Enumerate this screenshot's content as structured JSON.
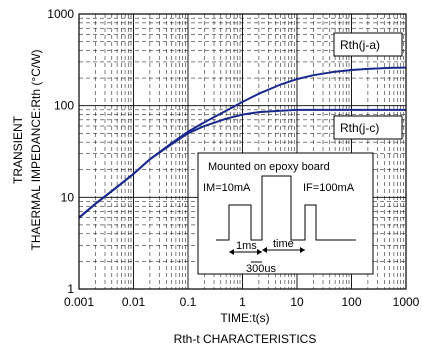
{
  "chart_data": {
    "type": "line",
    "title": "",
    "xlabel": "TIME:t(s)",
    "ylabel_line1": "TRANSIENT",
    "ylabel_line2": "THAERMAL IMPEDANCE:Rth (°C/W)",
    "caption": "Rth-t CHARACTERISTICS",
    "x_scale": "log",
    "y_scale": "log",
    "xlim": [
      0.001,
      1000
    ],
    "ylim": [
      1,
      1000
    ],
    "x_ticks": [
      "0.001",
      "0.01",
      "0.1",
      "1",
      "10",
      "100",
      "1000"
    ],
    "y_ticks": [
      "1",
      "10",
      "100",
      "1000"
    ],
    "grid": true,
    "series": [
      {
        "name": "Rth(j-a)",
        "color": "#1a2a8c",
        "x": [
          0.001,
          0.002,
          0.005,
          0.01,
          0.02,
          0.05,
          0.1,
          0.2,
          0.5,
          1,
          2,
          5,
          10,
          20,
          50,
          100,
          200,
          500,
          1000
        ],
        "y": [
          6,
          8.5,
          13,
          18,
          26,
          39,
          52,
          66,
          88,
          110,
          135,
          170,
          195,
          215,
          235,
          245,
          252,
          258,
          260
        ]
      },
      {
        "name": "Rth(j-c)",
        "color": "#1a2a8c",
        "x": [
          0.001,
          0.002,
          0.005,
          0.01,
          0.02,
          0.05,
          0.1,
          0.2,
          0.5,
          1,
          2,
          5,
          10,
          20,
          50,
          100,
          200,
          500,
          1000
        ],
        "y": [
          6,
          8.5,
          13,
          18,
          26,
          38,
          50,
          60,
          72,
          80,
          85,
          88,
          90,
          90,
          90,
          90,
          90,
          90,
          90
        ]
      }
    ],
    "inset": {
      "title": "Mounted on epoxy board",
      "label_im": "IM=10mA",
      "label_if": "IF=100mA",
      "label_1ms": "1ms",
      "label_time": "time",
      "label_300us": "300us"
    }
  }
}
